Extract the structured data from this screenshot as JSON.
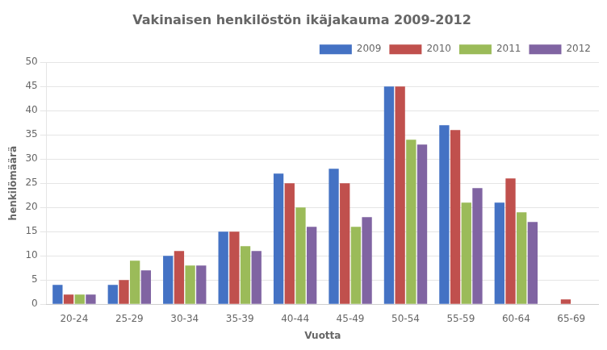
{
  "chart_data": {
    "type": "bar",
    "title": "Vakinaisen henkilöstön ikäjakauma 2009-2012",
    "xlabel": "Vuotta",
    "ylabel": "henkilömäärä",
    "categories": [
      "20-24",
      "25-29",
      "30-34",
      "35-39",
      "40-44",
      "45-49",
      "50-54",
      "55-59",
      "60-64",
      "65-69"
    ],
    "series": [
      {
        "name": "2009",
        "color": "#4472C4",
        "values": [
          4,
          4,
          10,
          15,
          27,
          28,
          45,
          37,
          21,
          0
        ]
      },
      {
        "name": "2010",
        "color": "#C0504D",
        "values": [
          2,
          5,
          11,
          15,
          25,
          25,
          45,
          36,
          26,
          1
        ]
      },
      {
        "name": "2011",
        "color": "#9BBB59",
        "values": [
          2,
          9,
          8,
          12,
          20,
          16,
          34,
          21,
          19,
          0
        ]
      },
      {
        "name": "2012",
        "color": "#8064A2",
        "values": [
          2,
          7,
          8,
          11,
          16,
          18,
          33,
          24,
          17,
          0
        ]
      }
    ],
    "ylim": [
      0,
      50
    ],
    "yticks": [
      0,
      5,
      10,
      15,
      20,
      25,
      30,
      35,
      40,
      45,
      50
    ],
    "grid": true,
    "legend": "upper right"
  }
}
